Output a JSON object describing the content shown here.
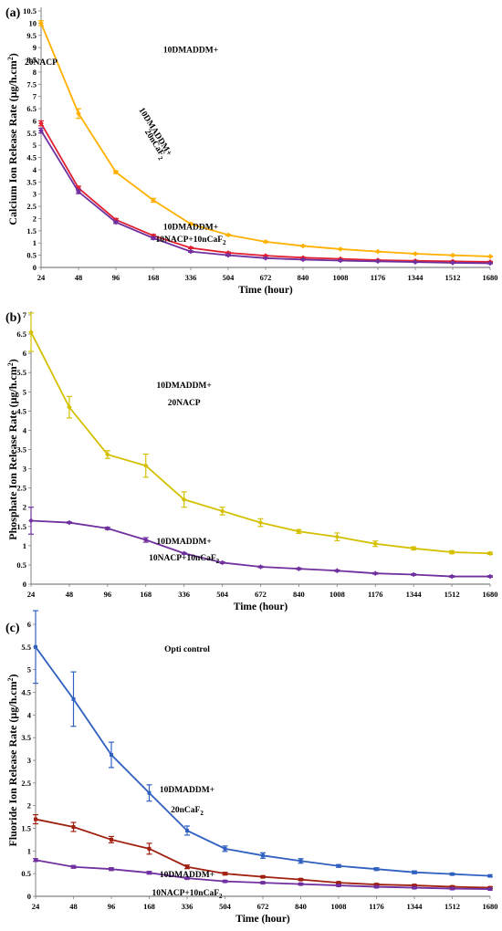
{
  "chart_data": [
    {
      "panel": "(a)",
      "type": "line",
      "x": [
        24,
        48,
        96,
        168,
        336,
        504,
        672,
        840,
        1008,
        1176,
        1344,
        1512,
        1680
      ],
      "xlabel": "Time (hour)",
      "ylabel_main": "Calcium Ion Release Rate (μg/h.cm",
      "ylabel_sup": "2",
      "ylabel_end": ")",
      "ylim": [
        0,
        10.5
      ],
      "yticks": [
        "0",
        "0.5",
        "1",
        "1.5",
        "2",
        "2.5",
        "3",
        "3.5",
        "4",
        "4.5",
        "5",
        "5.5",
        "6",
        "6.5",
        "7",
        "7.5",
        "8",
        "8.5",
        "9",
        "9.5",
        "10",
        "10.5"
      ],
      "grid": false,
      "series": [
        {
          "values": [
            10.0,
            6.3,
            3.9,
            2.75,
            1.78,
            1.33,
            1.05,
            0.88,
            0.75,
            0.65,
            0.56,
            0.5,
            0.45
          ],
          "errors": [
            0.1,
            0.2,
            0.05,
            0.08,
            0.04,
            0.03,
            0.03,
            0.02,
            0.02,
            0.02,
            0.02,
            0.02,
            0.02
          ],
          "color": "#FFB000"
        },
        {
          "values": [
            5.9,
            3.25,
            1.95,
            1.3,
            0.8,
            0.6,
            0.48,
            0.4,
            0.35,
            0.3,
            0.27,
            0.25,
            0.23
          ],
          "errors": [
            0.1,
            0.08,
            0.05,
            0.05,
            0.03,
            0.03,
            0.02,
            0.02,
            0.02,
            0.02,
            0.02,
            0.02,
            0.02
          ],
          "color": "#E02030"
        },
        {
          "values": [
            5.6,
            3.1,
            1.85,
            1.2,
            0.65,
            0.5,
            0.38,
            0.32,
            0.28,
            0.25,
            0.22,
            0.19,
            0.17
          ],
          "errors": [
            0.1,
            0.08,
            0.05,
            0.05,
            0.03,
            0.03,
            0.02,
            0.02,
            0.02,
            0.02,
            0.02,
            0.02,
            0.02
          ],
          "color": "#7030A0"
        }
      ],
      "annotations": [
        {
          "text": "10DMADDM+",
          "x": 336,
          "y": 8.8
        },
        {
          "text": "20NACP",
          "x": 240,
          "y": 8.3
        },
        {
          "text": "10DMADDM+",
          "x": 168,
          "y": 5.5
        },
        {
          "text": "20nCaF",
          "sub": "2",
          "x": 168,
          "y": 5.0
        },
        {
          "text": "10DMADDM+",
          "x": 336,
          "y": 1.55
        },
        {
          "text": "10NACP+10nCaF",
          "sub": "2",
          "x": 336,
          "y": 1.05
        }
      ]
    },
    {
      "panel": "(b)",
      "type": "line",
      "x": [
        24,
        48,
        96,
        168,
        336,
        504,
        672,
        840,
        1008,
        1176,
        1344,
        1512,
        1680
      ],
      "xlabel": "Time (hour)",
      "ylabel_main": "Phosphate Ion Release Rate (μg/h.cm",
      "ylabel_sup": "2",
      "ylabel_end": ")",
      "ylim": [
        0,
        7
      ],
      "yticks": [
        "0",
        "0.5",
        "1",
        "1.5",
        "2",
        "2.5",
        "3",
        "3.5",
        "4",
        "4.5",
        "5",
        "5.5",
        "6",
        "6.5",
        "7"
      ],
      "grid": false,
      "series": [
        {
          "values": [
            6.55,
            4.6,
            3.37,
            3.08,
            2.2,
            1.9,
            1.6,
            1.37,
            1.23,
            1.05,
            0.93,
            0.83,
            0.8
          ],
          "errors": [
            0.5,
            0.28,
            0.1,
            0.3,
            0.2,
            0.1,
            0.1,
            0.05,
            0.1,
            0.07,
            0.04,
            0.04,
            0.03
          ],
          "color": "#D4C000"
        },
        {
          "values": [
            1.65,
            1.6,
            1.45,
            1.15,
            0.8,
            0.56,
            0.45,
            0.4,
            0.35,
            0.28,
            0.25,
            0.2,
            0.2
          ],
          "errors": [
            0.35,
            0.02,
            0.03,
            0.06,
            0.02,
            0.02,
            0.02,
            0.02,
            0.02,
            0.02,
            0.02,
            0.02,
            0.02
          ],
          "color": "#7030A0"
        }
      ],
      "annotations": [
        {
          "text": "10DMADDM+",
          "x": 336,
          "y": 5.1
        },
        {
          "text": "20NACP",
          "x": 336,
          "y": 4.65
        },
        {
          "text": "10DMADDM+",
          "x": 336,
          "y": 1.05
        },
        {
          "text": "10NACP+10nCaF",
          "sub": "2",
          "x": 336,
          "y": 0.62
        }
      ]
    },
    {
      "panel": "(c)",
      "type": "line",
      "x": [
        24,
        48,
        96,
        168,
        336,
        504,
        672,
        840,
        1008,
        1176,
        1344,
        1512,
        1680
      ],
      "xlabel": "Time (hour)",
      "ylabel_main": "Fluoride Ion Release Rate (μg/h.cm",
      "ylabel_sup": "2",
      "ylabel_end": ")",
      "ylim": [
        0,
        6
      ],
      "yticks": [
        "0",
        "0.5",
        "1",
        "1.5",
        "2",
        "2.5",
        "3",
        "3.5",
        "4",
        "4.5",
        "5",
        "5.5",
        "6"
      ],
      "grid": false,
      "series": [
        {
          "values": [
            5.5,
            4.35,
            3.12,
            2.28,
            1.45,
            1.05,
            0.9,
            0.78,
            0.67,
            0.6,
            0.53,
            0.49,
            0.45
          ],
          "errors": [
            0.8,
            0.6,
            0.28,
            0.18,
            0.1,
            0.06,
            0.06,
            0.05,
            0.03,
            0.03,
            0.03,
            0.02,
            0.02
          ],
          "color": "#3060C0"
        },
        {
          "values": [
            1.7,
            1.53,
            1.25,
            1.05,
            0.65,
            0.5,
            0.43,
            0.37,
            0.3,
            0.26,
            0.24,
            0.21,
            0.19
          ],
          "errors": [
            0.1,
            0.1,
            0.07,
            0.12,
            0.04,
            0.03,
            0.02,
            0.02,
            0.02,
            0.02,
            0.02,
            0.02,
            0.02
          ],
          "color": "#A02010"
        },
        {
          "values": [
            0.8,
            0.65,
            0.6,
            0.52,
            0.4,
            0.33,
            0.3,
            0.27,
            0.24,
            0.21,
            0.19,
            0.17,
            0.16
          ],
          "errors": [
            0.03,
            0.03,
            0.03,
            0.03,
            0.02,
            0.02,
            0.02,
            0.02,
            0.02,
            0.02,
            0.02,
            0.02,
            0.02
          ],
          "color": "#7030A0"
        }
      ],
      "annotations": [
        {
          "text": "Opti control",
          "x": 336,
          "y": 5.4
        },
        {
          "text": "10DMADDM+",
          "x": 336,
          "y": 2.3
        },
        {
          "text": "20nCaF",
          "sub": "2",
          "x": 336,
          "y": 1.85
        },
        {
          "text": "10DMADDM+",
          "x": 336,
          "y": 0.42
        },
        {
          "text": "10NACP+10nCaF",
          "sub": "2",
          "x": 336,
          "y": 0.02
        }
      ]
    }
  ]
}
